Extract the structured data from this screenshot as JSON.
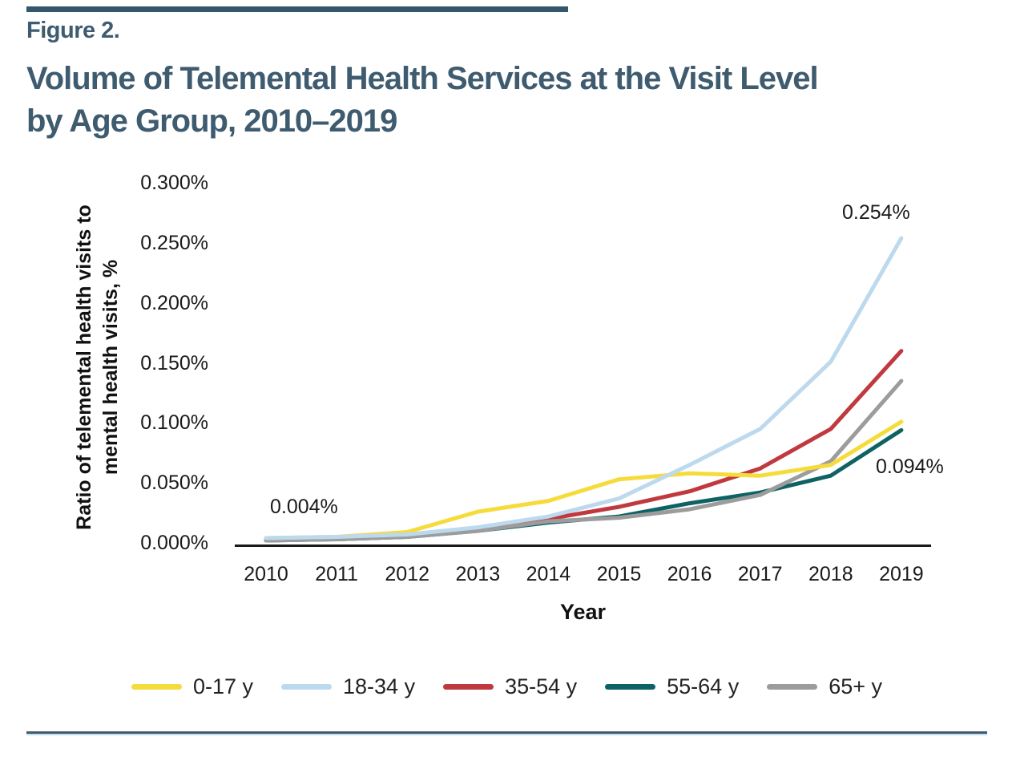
{
  "page": {
    "figure_label": "Figure 2.",
    "title_lines": [
      "Volume of Telemental Health Services at the Visit Level",
      "by Age Group, 2010–2019"
    ]
  },
  "colors": {
    "heading": "#3E5B6F",
    "top_bar": "#35576B",
    "axis_line": "#1A1A1A",
    "bottom_rule": "#3E5B6F"
  },
  "chart_data": {
    "type": "line",
    "title": "Volume of Telemental Health Services at the Visit Level by Age Group, 2010–2019",
    "xlabel": "Year",
    "ylabel": "Ratio of telemental health visits to mental health visits, %",
    "ylabel_lines": [
      "Ratio of telemental health visits to",
      "mental health visits, %"
    ],
    "x": [
      "2010",
      "2011",
      "2012",
      "2013",
      "2014",
      "2015",
      "2016",
      "2017",
      "2018",
      "2019"
    ],
    "ylim": [
      0.0,
      0.3
    ],
    "unit": "%",
    "grid": false,
    "legend_position": "bottom",
    "y_ticks": [
      {
        "label": "0.300%",
        "value": 0.3
      },
      {
        "label": "0.250%",
        "value": 0.25
      },
      {
        "label": "0.200%",
        "value": 0.2
      },
      {
        "label": "0.150%",
        "value": 0.15
      },
      {
        "label": "0.100%",
        "value": 0.1
      },
      {
        "label": "0.050%",
        "value": 0.05
      },
      {
        "label": "0.000%",
        "value": 0.0
      }
    ],
    "series": [
      {
        "name": "0-17 y",
        "color": "#F5DC3B",
        "values": [
          0.004,
          0.005,
          0.009,
          0.026,
          0.035,
          0.053,
          0.058,
          0.056,
          0.065,
          0.101
        ]
      },
      {
        "name": "18-34 y",
        "color": "#BCD9EE",
        "values": [
          0.004,
          0.005,
          0.007,
          0.013,
          0.022,
          0.037,
          0.065,
          0.095,
          0.151,
          0.254
        ]
      },
      {
        "name": "35-54 y",
        "color": "#C0393F",
        "values": [
          0.003,
          0.004,
          0.006,
          0.012,
          0.02,
          0.03,
          0.043,
          0.062,
          0.095,
          0.16
        ]
      },
      {
        "name": "55-64 y",
        "color": "#0F6263",
        "values": [
          0.002,
          0.003,
          0.005,
          0.01,
          0.017,
          0.022,
          0.033,
          0.042,
          0.056,
          0.094
        ]
      },
      {
        "name": "65+ y",
        "color": "#9C9C9C",
        "values": [
          0.002,
          0.003,
          0.005,
          0.01,
          0.018,
          0.021,
          0.028,
          0.04,
          0.068,
          0.135
        ]
      }
    ],
    "draw_order": [
      2,
      3,
      4,
      0,
      1
    ],
    "annotations": {
      "y2010_all": "0.004%",
      "y2019_18_34": "0.254%",
      "y2019_55_64": "0.094%"
    }
  }
}
